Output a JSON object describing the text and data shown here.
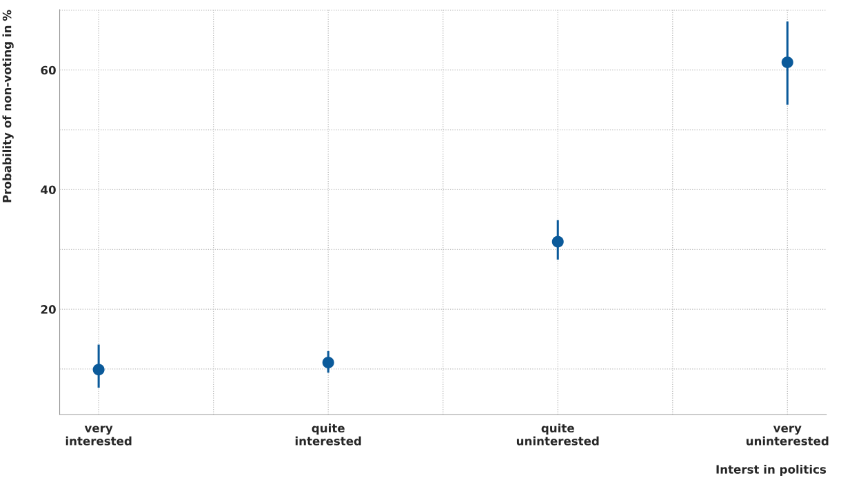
{
  "chart_data": {
    "type": "scatter",
    "xlabel": "Interst in politics",
    "ylabel": "Probability of non-voting in %",
    "categories": [
      "very\ninterested",
      "quite\ninterested",
      "quite\nuninterested",
      "very\nuninterested"
    ],
    "series": [
      {
        "color": "#0b5a9a",
        "values": [
          9.9,
          11.1,
          31.3,
          61.3
        ],
        "errors": [
          [
            6.9,
            14.1
          ],
          [
            9.4,
            13.0
          ],
          [
            28.3,
            34.9
          ],
          [
            54.2,
            68.1
          ]
        ]
      }
    ],
    "ylim": [
      2.4,
      70.1
    ],
    "yticks": [
      {
        "value": 10,
        "label": null
      },
      20,
      {
        "value": 30,
        "label": null
      },
      40,
      {
        "value": 50,
        "label": null
      },
      60,
      {
        "value": 70,
        "label": null
      }
    ],
    "grid": true,
    "marker": "circle",
    "legend": false
  }
}
